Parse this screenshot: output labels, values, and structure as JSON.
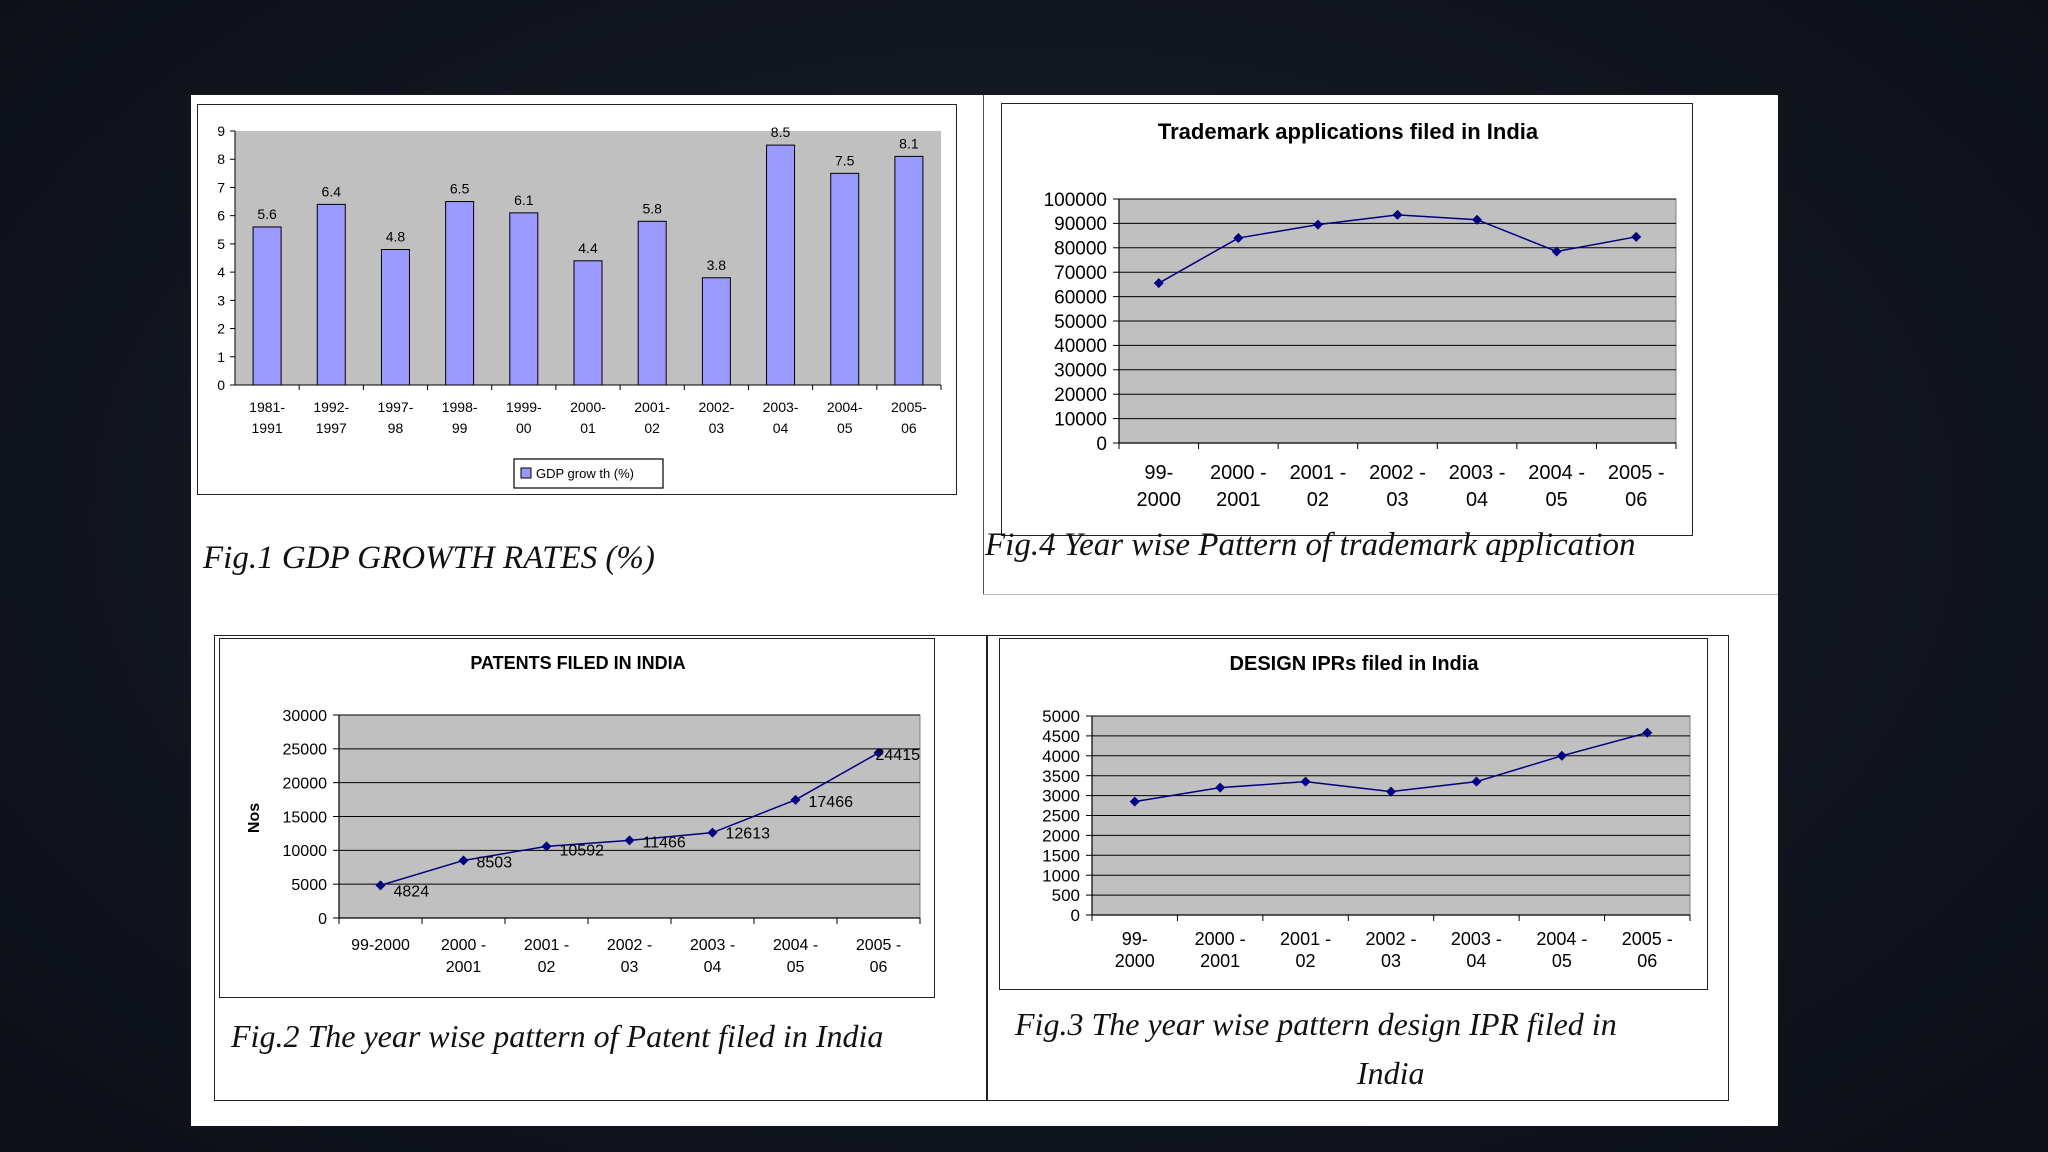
{
  "captions": {
    "fig1": "Fig.1 GDP GROWTH RATES (%)",
    "fig4": "Fig.4    Year wise Pattern of trademark application",
    "fig2": "Fig.2 The year wise pattern of Patent filed in India",
    "fig3_line1": "Fig.3 The year wise pattern design IPR filed in",
    "fig3_line2": "India"
  },
  "colors": {
    "bar_fill": "#9999ff",
    "plot_bg": "#c0c0c0",
    "line": "#000080",
    "marker": "#000080"
  },
  "chart_data": [
    {
      "id": "gdp",
      "type": "bar",
      "title": "",
      "categories": [
        [
          "1981-",
          "1991"
        ],
        [
          "1992-",
          "1997"
        ],
        [
          "1997-",
          "98"
        ],
        [
          "1998-",
          "99"
        ],
        [
          "1999-",
          "00"
        ],
        [
          "2000-",
          "01"
        ],
        [
          "2001-",
          "02"
        ],
        [
          "2002-",
          "03"
        ],
        [
          "2003-",
          "04"
        ],
        [
          "2004-",
          "05"
        ],
        [
          "2005-",
          "06"
        ]
      ],
      "series": [
        {
          "name": "GDP grow th (%)",
          "values": [
            5.6,
            6.4,
            4.8,
            6.5,
            6.1,
            4.4,
            5.8,
            3.8,
            8.5,
            7.5,
            8.1
          ]
        }
      ],
      "data_labels": [
        "5.6",
        "6.4",
        "4.8",
        "6.5",
        "6.1",
        "4.4",
        "5.8",
        "3.8",
        "8.5",
        "7.5",
        "8.1"
      ],
      "ylim": [
        0,
        9
      ],
      "yticks": [
        "0",
        "1",
        "2",
        "3",
        "4",
        "5",
        "6",
        "7",
        "8",
        "9"
      ],
      "grid": false,
      "legend": "bottom"
    },
    {
      "id": "trademark",
      "type": "line",
      "title": "Trademark applications filed in India",
      "categories": [
        [
          "99-",
          "2000"
        ],
        [
          "2000 -",
          "2001"
        ],
        [
          "2001 -",
          "02"
        ],
        [
          "2002 -",
          "03"
        ],
        [
          "2003 -",
          "04"
        ],
        [
          "2004 -",
          "05"
        ],
        [
          "2005 -",
          "06"
        ]
      ],
      "series": [
        {
          "values": [
            65500,
            84000,
            89500,
            93500,
            91500,
            78500,
            84500
          ]
        }
      ],
      "ylim": [
        0,
        100000
      ],
      "yticks": [
        "0",
        "10000",
        "20000",
        "30000",
        "40000",
        "50000",
        "60000",
        "70000",
        "80000",
        "90000",
        "100000"
      ],
      "grid": true
    },
    {
      "id": "patents",
      "type": "line",
      "title": "PATENTS FILED IN INDIA",
      "ylabel": "Nos",
      "categories": [
        [
          "99-2000"
        ],
        [
          "2000 -",
          "2001"
        ],
        [
          "2001 -",
          "02"
        ],
        [
          "2002 -",
          "03"
        ],
        [
          "2003 -",
          "04"
        ],
        [
          "2004 -",
          "05"
        ],
        [
          "2005 -",
          "06"
        ]
      ],
      "series": [
        {
          "values": [
            4824,
            8503,
            10592,
            11466,
            12613,
            17466,
            24415
          ]
        }
      ],
      "data_labels": [
        "4824",
        "8503",
        "10592",
        "11466",
        "12613",
        "17466",
        "24415"
      ],
      "ylim": [
        0,
        30000
      ],
      "yticks": [
        "0",
        "5000",
        "10000",
        "15000",
        "20000",
        "25000",
        "30000"
      ],
      "grid": true
    },
    {
      "id": "design",
      "type": "line",
      "title": "DESIGN IPRs filed in India",
      "categories": [
        [
          "99-",
          "2000"
        ],
        [
          "2000 -",
          "2001"
        ],
        [
          "2001 -",
          "02"
        ],
        [
          "2002 -",
          "03"
        ],
        [
          "2003 -",
          "04"
        ],
        [
          "2004 -",
          "05"
        ],
        [
          "2005 -",
          "06"
        ]
      ],
      "series": [
        {
          "values": [
            2850,
            3200,
            3350,
            3100,
            3350,
            4000,
            4580
          ]
        }
      ],
      "ylim": [
        0,
        5000
      ],
      "yticks": [
        "0",
        "500",
        "1000",
        "1500",
        "2000",
        "2500",
        "3000",
        "3500",
        "4000",
        "4500",
        "5000"
      ],
      "grid": true
    }
  ]
}
